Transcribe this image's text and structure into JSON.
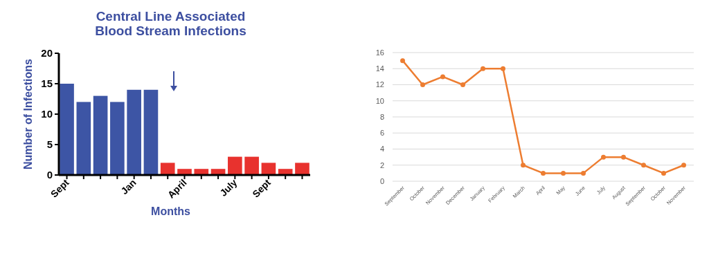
{
  "chart_data": [
    {
      "type": "bar",
      "title": "Central Line Associated\nBlood Stream Infections",
      "xlabel": "Months",
      "ylabel": "Number of Infections",
      "categories": [
        "Sept",
        null,
        null,
        null,
        "Jan",
        null,
        null,
        "April",
        null,
        null,
        "July",
        null,
        "Sept",
        null,
        null
      ],
      "values": [
        15,
        12,
        13,
        12,
        14,
        14,
        2,
        1,
        1,
        1,
        3,
        3,
        2,
        1,
        2
      ],
      "colors": [
        "#3d55a5",
        "#3d55a5",
        "#3d55a5",
        "#3d55a5",
        "#3d55a5",
        "#3d55a5",
        "#e8322e",
        "#e8322e",
        "#e8322e",
        "#e8322e",
        "#e8322e",
        "#e8322e",
        "#e8322e",
        "#e8322e",
        "#e8322e"
      ],
      "ylim": [
        0,
        20
      ],
      "yticks": [
        0,
        5,
        10,
        15,
        20
      ],
      "grid": false
    },
    {
      "type": "line",
      "categories": [
        "September",
        "October",
        "November",
        "December",
        "January",
        "February",
        "March",
        "April",
        "May",
        "June",
        "July",
        "August",
        "September",
        "October",
        "November"
      ],
      "series": [
        {
          "color": "#ed7d31",
          "values": [
            15,
            12,
            13,
            12,
            14,
            14,
            2,
            1,
            1,
            1,
            3,
            3,
            2,
            1,
            2
          ]
        }
      ],
      "ylim": [
        0,
        16
      ],
      "yticks": [
        0,
        2,
        4,
        6,
        8,
        10,
        12,
        14,
        16
      ],
      "grid": "y",
      "marker": "circle"
    }
  ]
}
